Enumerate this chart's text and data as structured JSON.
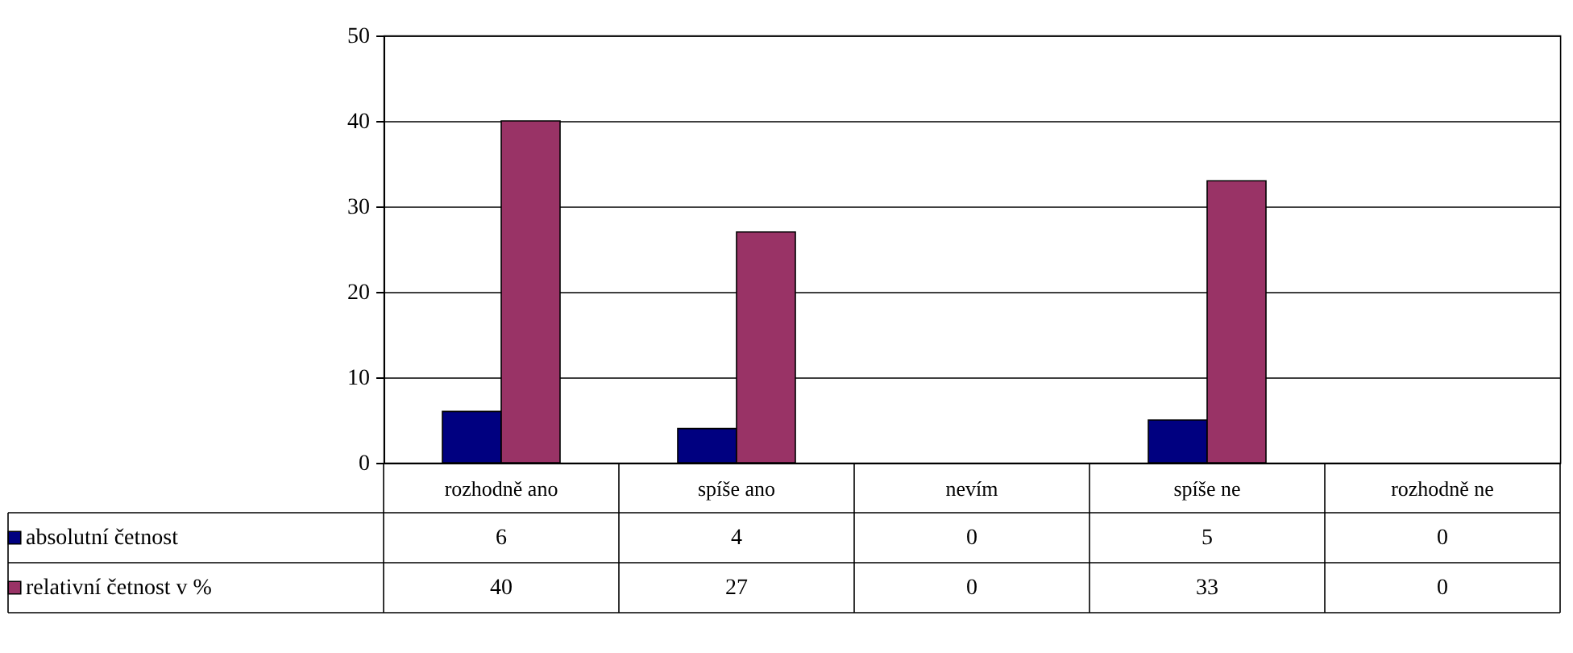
{
  "chart_data": {
    "type": "bar",
    "categories": [
      "rozhodně ano",
      "spíše ano",
      "nevím",
      "spíše ne",
      "rozhodně ne"
    ],
    "series": [
      {
        "name": "absolutní četnost",
        "color": "#000080",
        "values": [
          6,
          4,
          0,
          5,
          0
        ]
      },
      {
        "name": "relativní četnost v %",
        "color": "#993366",
        "values": [
          40,
          27,
          0,
          33,
          0
        ]
      }
    ],
    "ylim": [
      0,
      50
    ],
    "yticks": [
      0,
      10,
      20,
      30,
      40,
      50
    ],
    "grid": "y",
    "legend": "bottom left",
    "data_labels": true
  }
}
